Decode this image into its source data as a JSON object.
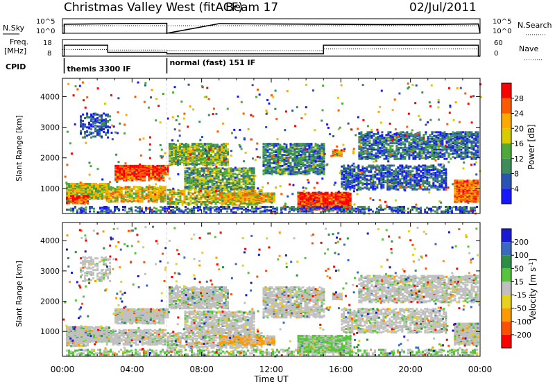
{
  "header": {
    "title": "Christmas Valley West (fitACF)",
    "beam": "Beam 17",
    "date": "02/Jul/2011"
  },
  "colors": {
    "power_scale": [
      "#1818ff",
      "#2a54b4",
      "#3d8c5a",
      "#4daa3a",
      "#d8cc00",
      "#ffa800",
      "#ff5a00",
      "#ff0000"
    ],
    "velocity_scale": [
      "#ff0000",
      "#ff5000",
      "#ff9a00",
      "#e6d21a",
      "#c0c0c0",
      "#55c53a",
      "#2d8f45",
      "#3a6abf",
      "#1a1ad5"
    ]
  },
  "chart_data": [
    {
      "type": "line",
      "name_panel": "noise",
      "labels": {
        "left": "N.Sky",
        "right": "N.Search",
        "left_top": "10^5",
        "left_bottom": "10^0",
        "right_top": "10^5",
        "right_bottom": "10^0"
      },
      "x_range_hours": [
        0,
        24
      ],
      "series": [
        {
          "name": "N.Sky",
          "style": "solid",
          "x": [
            0,
            0.1,
            0.1,
            3,
            5.9,
            6.0,
            6.0,
            9,
            12,
            15,
            18,
            21,
            23.9,
            24.0
          ],
          "y_log10": [
            0,
            0,
            3.1,
            3.3,
            3.4,
            3.4,
            0,
            3.3,
            3.2,
            3.1,
            3.0,
            3.0,
            3.2,
            0
          ]
        },
        {
          "name": "N.Search",
          "style": "dotted",
          "x": [
            0,
            24
          ],
          "y_log10": [
            2.6,
            2.6
          ]
        }
      ]
    },
    {
      "type": "line",
      "name_panel": "frequency",
      "labels": {
        "left": "Freq. [MHz]",
        "right": "Nave",
        "left_top": "18",
        "left_bottom": "8",
        "right_top": "60",
        "right_bottom": "0"
      },
      "x_range_hours": [
        0,
        24
      ],
      "series": [
        {
          "name": "Freq.",
          "style": "solid",
          "x": [
            0,
            0.1,
            0.1,
            2.6,
            2.6,
            6.0,
            6.0,
            15.0,
            15.0,
            23.9,
            23.9,
            24
          ],
          "y": [
            8,
            8,
            14.6,
            14.6,
            10.3,
            10.3,
            9.4,
            9.4,
            14.6,
            14.6,
            8,
            8
          ]
        },
        {
          "name": "Nave",
          "style": "dotted",
          "x": [
            0,
            2.6,
            2.6,
            6.0,
            6.0,
            15.0,
            15.0,
            24
          ],
          "y": [
            24,
            24,
            22,
            22,
            20,
            20,
            26,
            26
          ]
        }
      ]
    },
    {
      "type": "heatmap",
      "name_panel": "power",
      "ylabel": "Slant Range [km]",
      "y_ticks": [
        "1000",
        "2000",
        "3000",
        "4000"
      ],
      "ylim": [
        180,
        4600
      ],
      "xlim_hours": [
        0,
        24
      ],
      "colorbar_label": "Power [dB]",
      "colorbar_ticks": [
        "4",
        "8",
        "12",
        "16",
        "20",
        "24",
        "28"
      ]
    },
    {
      "type": "heatmap",
      "name_panel": "velocity",
      "ylabel": "Slant Range [km]",
      "y_ticks": [
        "1000",
        "2000",
        "3000",
        "4000"
      ],
      "ylim": [
        180,
        4600
      ],
      "xlim_hours": [
        0,
        24
      ],
      "xlabel": "Time UT",
      "x_ticks": [
        "00:00",
        "04:00",
        "08:00",
        "12:00",
        "16:00",
        "20:00",
        "00:00"
      ],
      "colorbar_label": "Velocity [m s",
      "colorbar_label_sup": "-1",
      "colorbar_label_end": "]",
      "colorbar_ticks": [
        "200",
        "100",
        "50",
        "15",
        "-15",
        "-50",
        "-100",
        "-200"
      ]
    }
  ],
  "cpid": {
    "label": "CPID",
    "segments": [
      {
        "start_hour": 0.1,
        "end_hour": 6.0,
        "text": "themis 3300 IF"
      },
      {
        "start_hour": 6.0,
        "end_hour": 24,
        "text": "normal (fast) 151 IF"
      }
    ]
  }
}
